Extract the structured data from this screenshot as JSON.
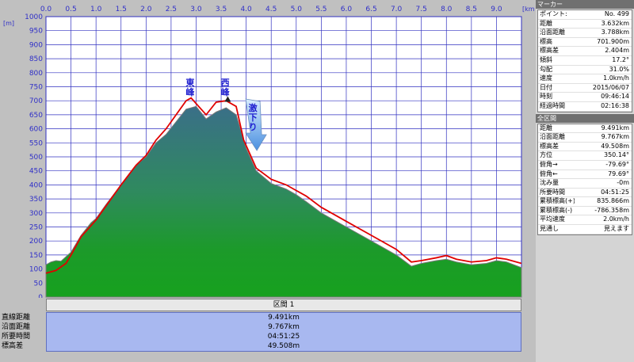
{
  "chart": {
    "x_unit": "[km]",
    "y_unit": "[m]",
    "peak_east": "東峰",
    "peak_west": "西峰",
    "descent_label": "激下り"
  },
  "chart_data": {
    "type": "area",
    "x_ticks": [
      "0.0",
      "0.5",
      "1.0",
      "1.5",
      "2.0",
      "2.5",
      "3.0",
      "3.5",
      "4.0",
      "4.5",
      "5.0",
      "5.5",
      "6.0",
      "6.5",
      "7.0",
      "7.5",
      "8.0",
      "8.5",
      "9.0"
    ],
    "y_ticks": [
      "1000",
      "950",
      "900",
      "850",
      "800",
      "750",
      "700",
      "650",
      "600",
      "550",
      "500",
      "450",
      "400",
      "350",
      "300",
      "250",
      "200",
      "150",
      "100",
      "50",
      "0"
    ],
    "xlim": [
      0,
      9.5
    ],
    "ylim": [
      0,
      1000
    ],
    "series": [
      {
        "x": [
          0.0,
          0.1,
          0.2,
          0.3,
          0.5,
          0.7,
          0.9,
          1.0,
          1.2,
          1.5,
          1.8,
          2.0,
          2.2,
          2.4,
          2.6,
          2.8,
          2.9,
          3.0,
          3.2,
          3.4,
          3.6,
          3.8,
          4.0,
          4.2,
          4.5,
          4.8,
          5.0,
          5.2,
          5.5,
          5.8,
          6.0,
          6.5,
          7.0,
          7.3,
          7.5,
          7.8,
          8.0,
          8.2,
          8.5,
          8.8,
          9.0,
          9.2,
          9.5
        ],
        "y": [
          115,
          125,
          130,
          128,
          160,
          220,
          265,
          280,
          330,
          400,
          470,
          500,
          550,
          580,
          625,
          670,
          675,
          680,
          635,
          660,
          675,
          650,
          530,
          450,
          405,
          385,
          365,
          340,
          300,
          270,
          250,
          200,
          150,
          110,
          120,
          130,
          135,
          125,
          115,
          120,
          130,
          125,
          105
        ]
      },
      {
        "x": [
          0.0,
          0.2,
          0.4,
          0.5,
          0.7,
          0.9,
          1.0,
          1.2,
          1.5,
          1.8,
          2.0,
          2.2,
          2.4,
          2.6,
          2.8,
          2.9,
          3.0,
          3.2,
          3.4,
          3.6,
          3.8,
          3.95,
          4.2,
          4.5,
          4.8,
          5.0,
          5.2,
          5.5,
          5.8,
          6.0,
          6.5,
          7.0,
          7.3,
          7.5,
          7.8,
          8.0,
          8.2,
          8.5,
          8.8,
          9.0,
          9.2,
          9.5
        ],
        "y": [
          85,
          95,
          120,
          150,
          215,
          255,
          275,
          325,
          400,
          470,
          505,
          560,
          600,
          650,
          700,
          710,
          690,
          650,
          695,
          700,
          680,
          560,
          460,
          420,
          400,
          380,
          360,
          320,
          290,
          270,
          220,
          170,
          125,
          130,
          140,
          148,
          135,
          125,
          130,
          140,
          135,
          120
        ]
      }
    ]
  },
  "section": {
    "title": "区間 1",
    "labels": [
      "直線距離",
      "沿面距離",
      "所要時間",
      "標高差"
    ],
    "values": [
      "9.491km",
      "9.767km",
      "04:51:25",
      "49.508m"
    ]
  },
  "marker_panel": {
    "title": "マーカー",
    "rows": [
      {
        "k": "ポイント:",
        "v": "No. 499"
      },
      {
        "k": "距離",
        "v": "3.632km"
      },
      {
        "k": "沿面距離",
        "v": "3.788km"
      },
      {
        "k": "標高",
        "v": "701.900m"
      },
      {
        "k": "標高差",
        "v": "2.404m"
      },
      {
        "k": "傾斜",
        "v": "17.2°"
      },
      {
        "k": "勾配",
        "v": "31.0%"
      },
      {
        "k": "速度",
        "v": "1.0km/h"
      },
      {
        "k": "日付",
        "v": "2015/06/07"
      },
      {
        "k": "時刻",
        "v": "09:46:14"
      },
      {
        "k": "経過時間",
        "v": "02:16:38"
      }
    ]
  },
  "total_panel": {
    "title": "全区間",
    "rows": [
      {
        "k": "距離",
        "v": "9.491km"
      },
      {
        "k": "沿面距離",
        "v": "9.767km"
      },
      {
        "k": "標高差",
        "v": "49.508m"
      },
      {
        "k": "方位",
        "v": "350.14°"
      },
      {
        "k": "俯角→",
        "v": "-79.69°"
      },
      {
        "k": "俯角←",
        "v": "79.69°"
      },
      {
        "k": "沈み量",
        "v": "-0m"
      },
      {
        "k": "所要時間",
        "v": "04:51:25"
      },
      {
        "k": "累積標高(+)",
        "v": "835.866m"
      },
      {
        "k": "累積標高(-)",
        "v": "-786.358m"
      },
      {
        "k": "平均速度",
        "v": "2.0km/h"
      },
      {
        "k": "見通し",
        "v": "見えます"
      }
    ]
  }
}
